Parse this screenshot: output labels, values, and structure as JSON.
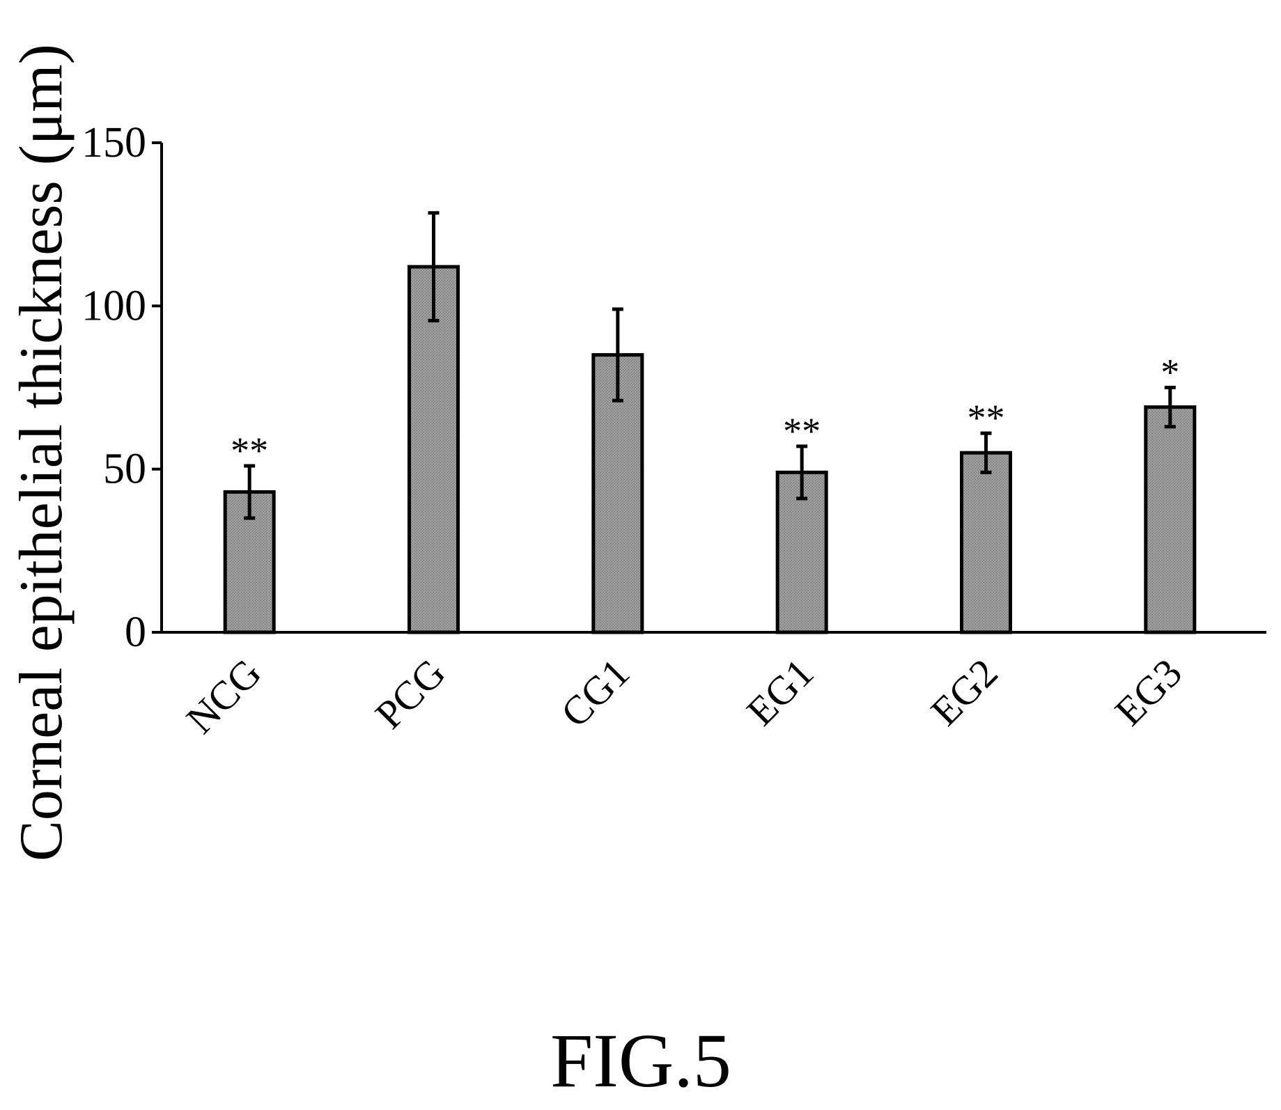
{
  "chart_data": {
    "type": "bar",
    "title": "",
    "xlabel": "",
    "ylabel": "Corneal epithelial thickness (μm)",
    "categories": [
      "NCG",
      "PCG",
      "CG1",
      "EG1",
      "EG2",
      "EG3"
    ],
    "values": [
      43,
      112,
      85,
      49,
      55,
      69
    ],
    "error": [
      8,
      16.5,
      14,
      8,
      6,
      6
    ],
    "significance": [
      "**",
      "",
      "",
      "**",
      "**",
      "*"
    ],
    "ylim": [
      0,
      150
    ],
    "yticks": [
      0,
      50,
      100,
      150
    ],
    "grid": false,
    "legend": "none",
    "bar_color": "#8f8f8f"
  },
  "figure": {
    "label": "FIG.5"
  }
}
